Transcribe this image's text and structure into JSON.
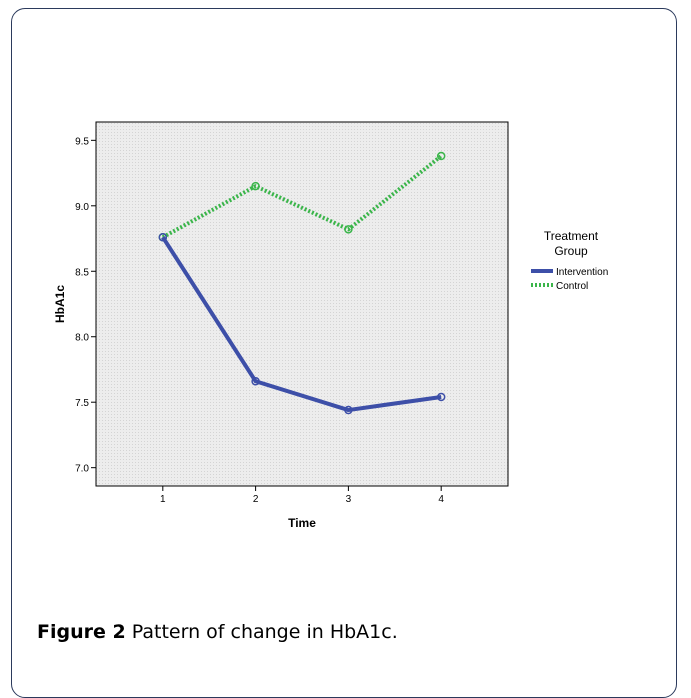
{
  "figure": {
    "label": "Figure 2",
    "caption": "Pattern of change in HbA1c."
  },
  "colors": {
    "plot_background": "#ececec",
    "intervention": "#3d4fa8",
    "control": "#3ab54a",
    "card_border": "#2b3a5c"
  },
  "chart_data": {
    "type": "line",
    "xlabel": "Time",
    "ylabel": "HbA1c",
    "x": [
      1,
      2,
      3,
      4
    ],
    "x_ticks": [
      "1",
      "2",
      "3",
      "4"
    ],
    "xlim": [
      0.28,
      4.72
    ],
    "ylim": [
      6.86,
      9.64
    ],
    "y_ticks": [
      7.0,
      7.5,
      8.0,
      8.5,
      9.0,
      9.5
    ],
    "y_tick_labels": [
      "7.0",
      "7.5",
      "8.0",
      "8.5",
      "9.0",
      "9.5"
    ],
    "grid": false,
    "legend": {
      "title_line1": "Treatment",
      "title_line2": "Group",
      "placement": "right"
    },
    "series": [
      {
        "name": "Intervention",
        "values": [
          8.76,
          7.66,
          7.44,
          7.54
        ],
        "style": "solid"
      },
      {
        "name": "Control",
        "values": [
          8.76,
          9.15,
          8.82,
          9.38
        ],
        "style": "dotted"
      }
    ]
  }
}
